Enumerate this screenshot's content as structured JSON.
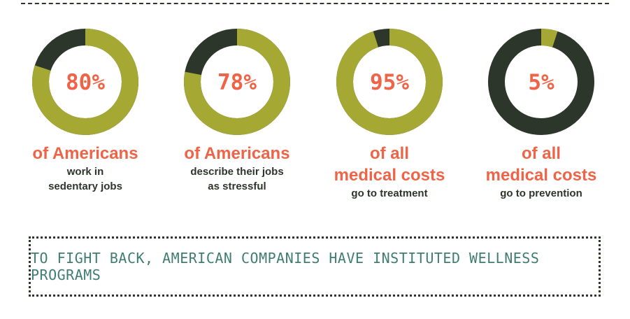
{
  "colors": {
    "filled": "#a5a934",
    "track": "#2d362b",
    "accent": "#ef6446",
    "banner_text": "#3f7d72"
  },
  "chart_data": {
    "type": "donut",
    "items": [
      {
        "value": 80,
        "label": "80%",
        "headline": [
          "of Americans"
        ],
        "sub": [
          "work in",
          "sedentary jobs"
        ]
      },
      {
        "value": 78,
        "label": "78%",
        "headline": [
          "of Americans"
        ],
        "sub": [
          "describe their jobs",
          "as stressful"
        ]
      },
      {
        "value": 95,
        "label": "95%",
        "headline": [
          "of all",
          "medical costs"
        ],
        "sub": [
          "go to treatment"
        ]
      },
      {
        "value": 5,
        "label": "5%",
        "headline": [
          "of all",
          "medical costs"
        ],
        "sub": [
          "go to prevention"
        ]
      }
    ]
  },
  "banner": {
    "text": "TO FIGHT BACK, AMERICAN COMPANIES HAVE INSTITUTED WELLNESS PROGRAMS"
  }
}
